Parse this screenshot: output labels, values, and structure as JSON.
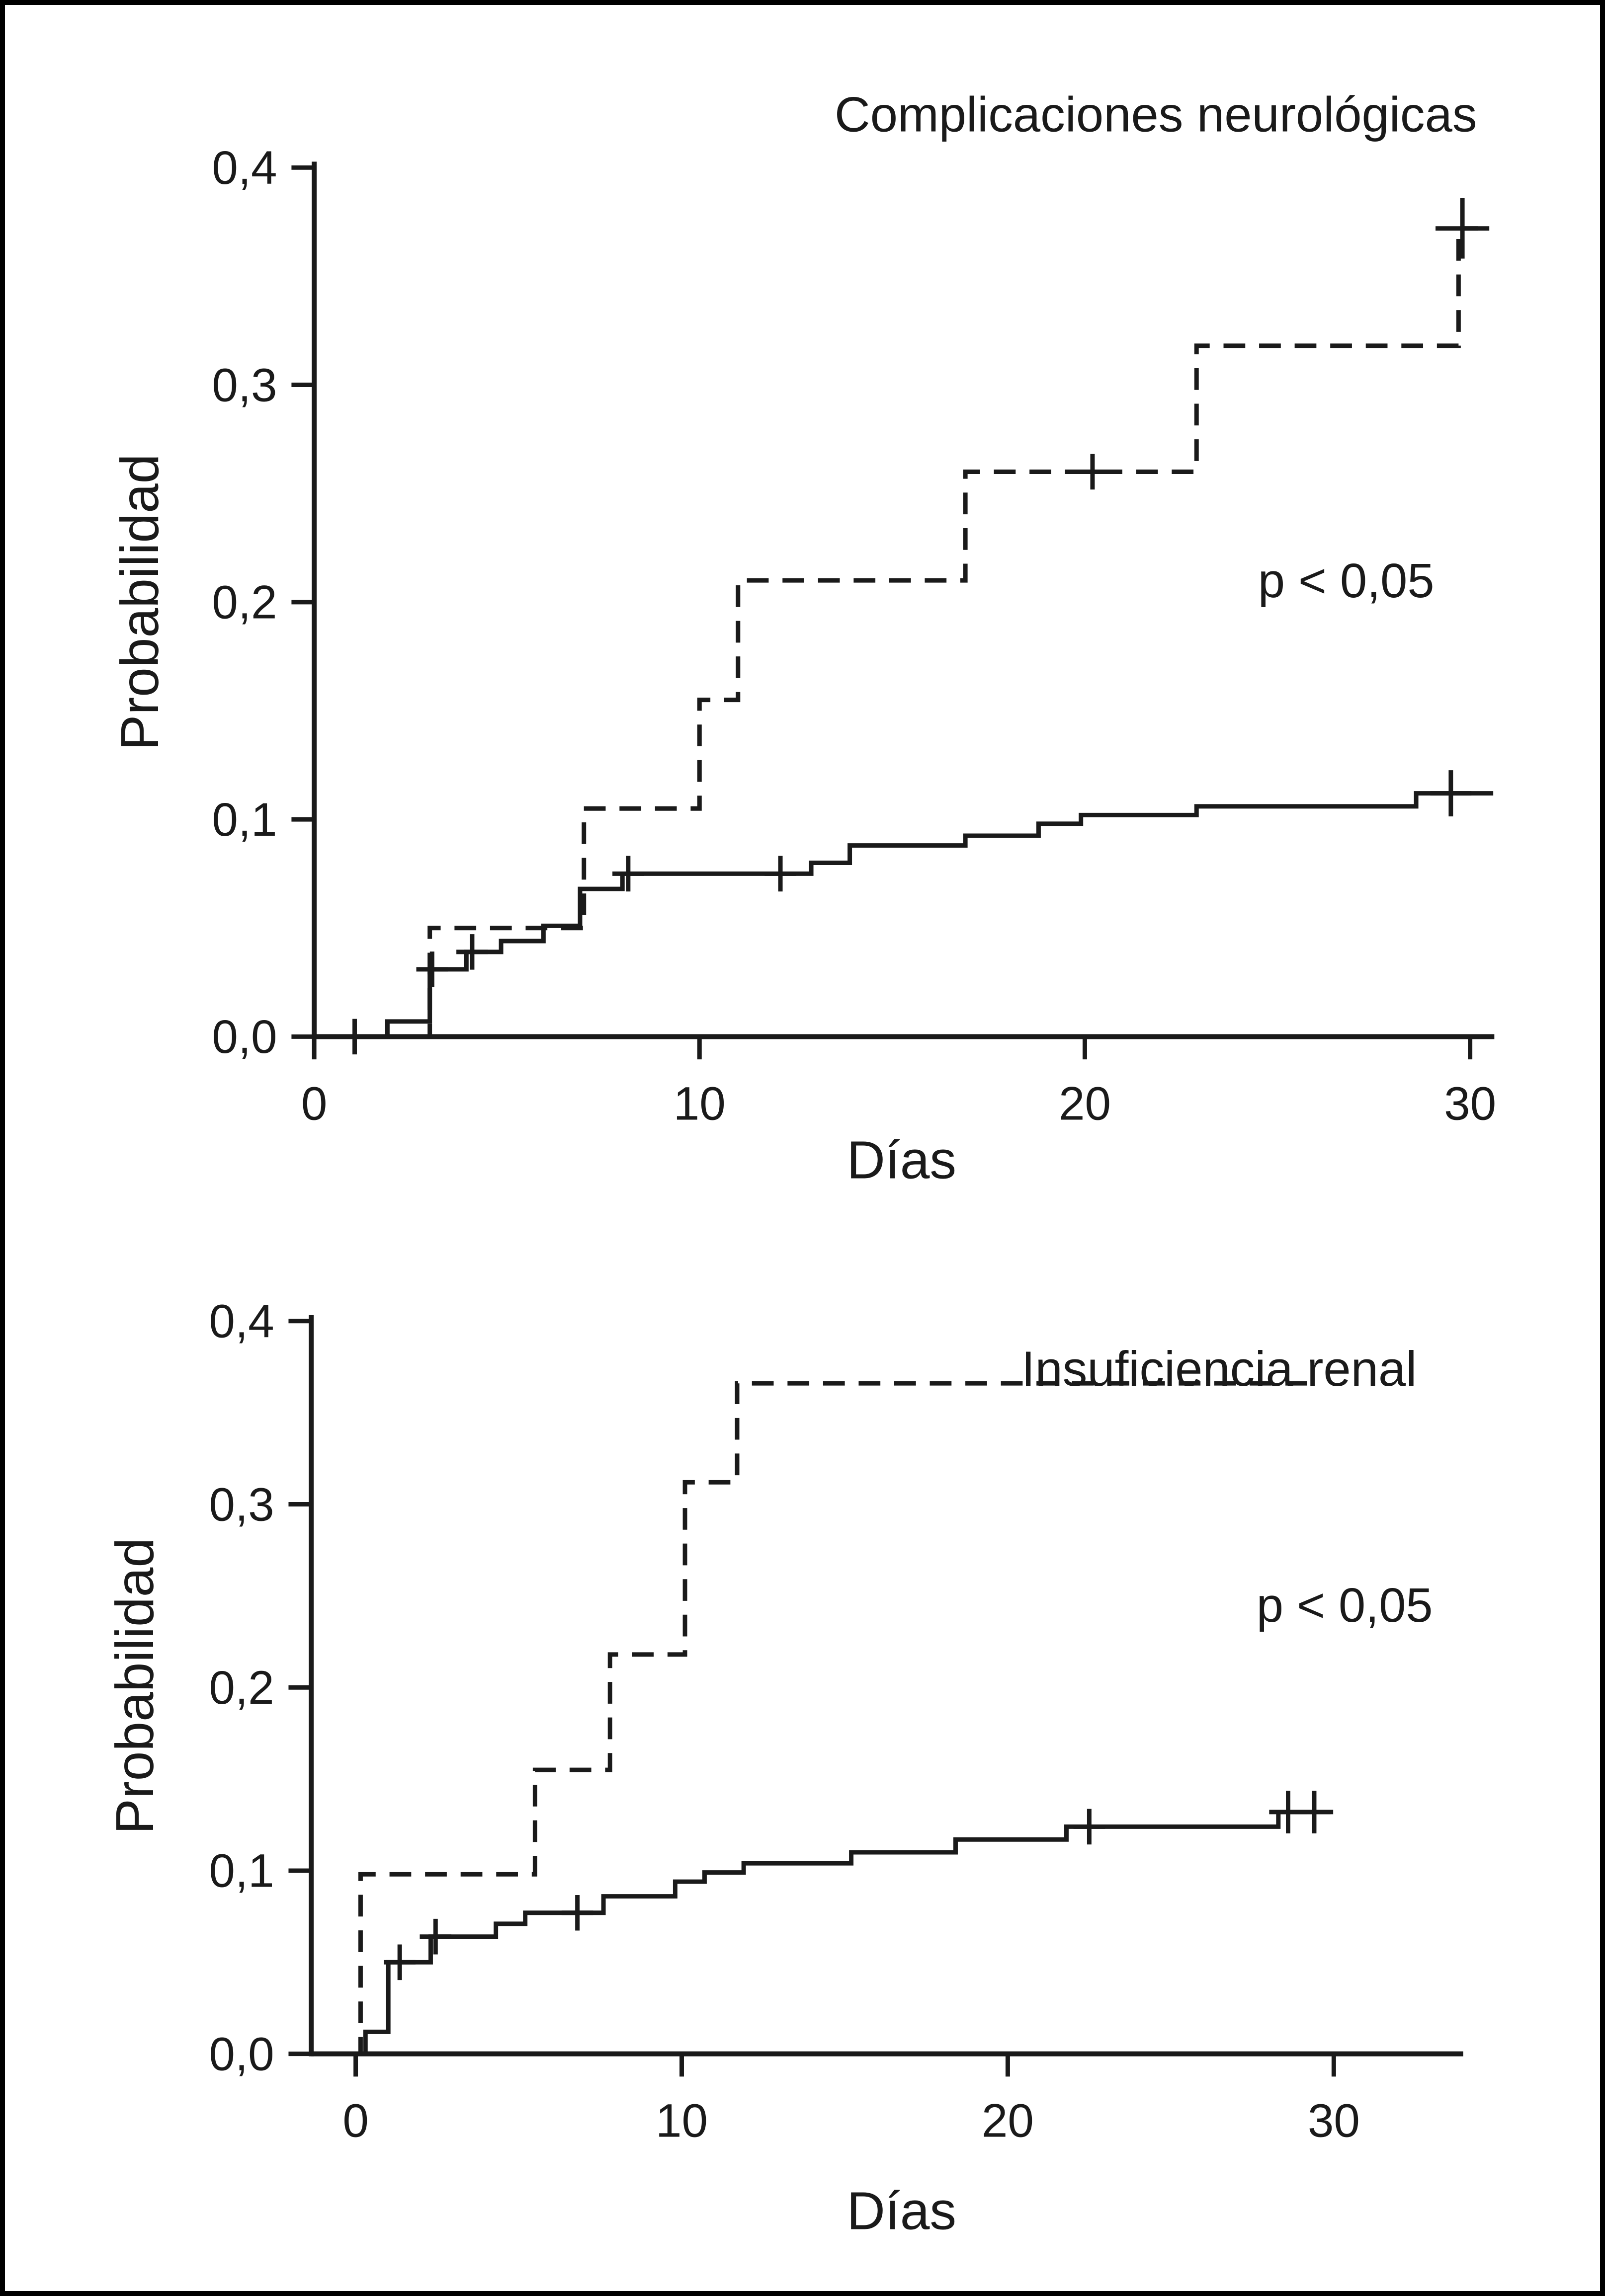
{
  "figure": {
    "background": "#ffffff",
    "line_color": "#1a1a1a",
    "border_color": "#000000"
  },
  "chart_data": [
    {
      "type": "line",
      "subtype": "kaplan-meier-step",
      "title": "Complicaciones neurológicas",
      "p_label": "p < 0,05",
      "xlabel": "Días",
      "ylabel": "Probabilidad",
      "xlim": [
        0,
        30.8
      ],
      "ylim": [
        0,
        0.4
      ],
      "grid": false,
      "xticks": [
        0,
        10,
        20,
        30
      ],
      "xtick_labels": [
        "0",
        "10",
        "20",
        "30"
      ],
      "yticks": [
        0.0,
        0.1,
        0.2,
        0.3,
        0.4
      ],
      "ytick_labels": [
        "0,0",
        "0,1",
        "0,2",
        "0,3",
        "0,4"
      ],
      "series": [
        {
          "name": "dashed-group",
          "line_style": "dashed",
          "start": [
            0,
            0
          ],
          "points": [
            [
              3,
              0.05
            ],
            [
              7,
              0.105
            ],
            [
              10,
              0.155
            ],
            [
              11,
              0.21
            ],
            [
              16.9,
              0.26
            ],
            [
              22.9,
              0.318
            ],
            [
              29.7,
              0.372
            ]
          ],
          "end_day": 30.2,
          "censors": [
            [
              20.2,
              0.26,
              1
            ],
            [
              29.8,
              0.372,
              1.7
            ]
          ]
        },
        {
          "name": "solid-group",
          "line_style": "solid",
          "start": [
            0,
            0
          ],
          "points": [
            [
              1.9,
              0.007
            ],
            [
              3.0,
              0.031
            ],
            [
              3.95,
              0.039
            ],
            [
              4.85,
              0.044
            ],
            [
              5.95,
              0.051
            ],
            [
              6.9,
              0.068
            ],
            [
              8.0,
              0.075
            ],
            [
              12.9,
              0.08
            ],
            [
              13.9,
              0.088
            ],
            [
              16.9,
              0.0925
            ],
            [
              18.8,
              0.098
            ],
            [
              19.9,
              0.102
            ],
            [
              22.9,
              0.106
            ],
            [
              28.6,
              0.112
            ]
          ],
          "end_day": 30.6,
          "censors": [
            [
              1.05,
              0,
              1
            ],
            [
              3.06,
              0.031,
              1
            ],
            [
              4.1,
              0.039,
              1
            ],
            [
              8.15,
              0.075,
              1
            ],
            [
              12.1,
              0.075,
              1
            ],
            [
              29.5,
              0.112,
              1.3
            ]
          ]
        }
      ]
    },
    {
      "type": "line",
      "subtype": "kaplan-meier-step",
      "title": "Insuficiencia renal",
      "p_label": "p < 0,05",
      "xlabel": "Días",
      "ylabel": "Probabilidad",
      "xlim": [
        0,
        34
      ],
      "ylim": [
        0,
        0.4
      ],
      "grid": false,
      "xticks": [
        0,
        10,
        20,
        30
      ],
      "xtick_labels": [
        "0",
        "10",
        "20",
        "30"
      ],
      "yticks": [
        0.0,
        0.1,
        0.2,
        0.3,
        0.4
      ],
      "ytick_labels": [
        "0,0",
        "0,1",
        "0,2",
        "0,3",
        "0,4"
      ],
      "series": [
        {
          "name": "dashed-group",
          "line_style": "dashed",
          "start": [
            0,
            0
          ],
          "points": [
            [
              0.15,
              0.098
            ],
            [
              5.5,
              0.155
            ],
            [
              7.8,
              0.218
            ],
            [
              10.1,
              0.312
            ],
            [
              11.7,
              0.366
            ]
          ],
          "end_day": 29.6,
          "censors": []
        },
        {
          "name": "solid-group",
          "line_style": "solid",
          "start": [
            0,
            0
          ],
          "points": [
            [
              0.3,
              0.012
            ],
            [
              1.0,
              0.05
            ],
            [
              2.3,
              0.064
            ],
            [
              4.3,
              0.071
            ],
            [
              5.2,
              0.077
            ],
            [
              7.6,
              0.086
            ],
            [
              9.8,
              0.094
            ],
            [
              10.7,
              0.099
            ],
            [
              11.9,
              0.104
            ],
            [
              15.2,
              0.11
            ],
            [
              18.4,
              0.117
            ],
            [
              21.8,
              0.124
            ],
            [
              28.3,
              0.132
            ]
          ],
          "end_day": 29.9,
          "censors": [
            [
              1.35,
              0.05,
              1
            ],
            [
              2.45,
              0.064,
              1
            ],
            [
              6.8,
              0.077,
              1
            ],
            [
              22.5,
              0.124,
              1
            ],
            [
              28.6,
              0.132,
              1.2
            ],
            [
              29.4,
              0.132,
              1.2
            ]
          ]
        }
      ]
    }
  ]
}
